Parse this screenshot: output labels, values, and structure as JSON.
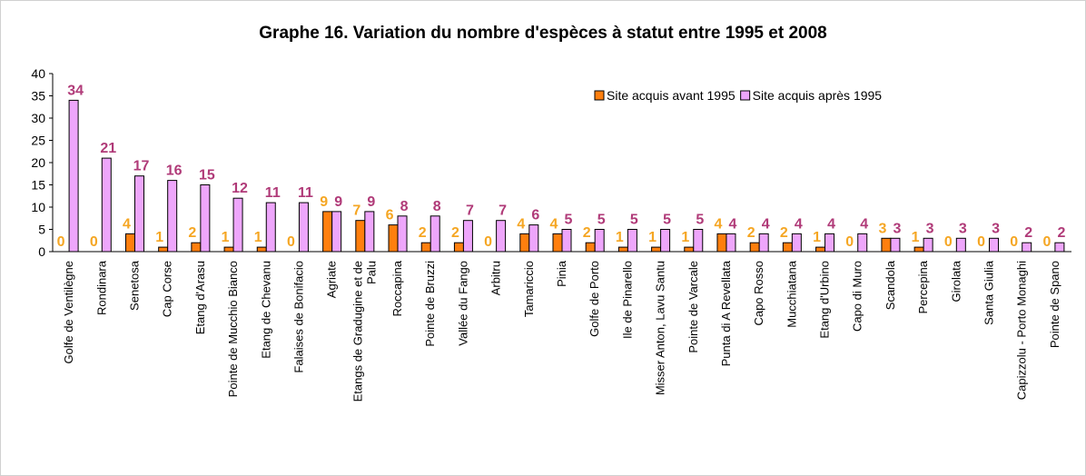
{
  "chart_data": {
    "type": "bar",
    "title": "Graphe 16. Variation du nombre d'espèces à statut entre 1995 et 2008",
    "categories": [
      "Golfe de Ventilègne",
      "Rondinara",
      "Senetosa",
      "Cap Corse",
      "Etang d'Arasu",
      "Pointe de Mucchio Bianco",
      "Etang de Chevanu",
      "Falaises de Bonifacio",
      "Agriate",
      "Etangs de Gradugine et de Palu",
      "Roccapina",
      "Pointe de Bruzzi",
      "Vallée du Fango",
      "Arbitru",
      "Tamariccio",
      "Pinia",
      "Golfe de Porto",
      "Ile de Pinarello",
      "Misser Anton, Lavu Santu",
      "Pointe de Varcale",
      "Punta di A Revellata",
      "Capo Rosso",
      "Mucchiatana",
      "Etang d'Urbino",
      "Capo di Muro",
      "Scandola",
      "Percepina",
      "Girolata",
      "Santa Giulia",
      "Capizzolu - Porto Monaghi",
      "Pointe de Spano"
    ],
    "series": [
      {
        "name": "Site acquis avant 1995",
        "color": "#ff7f0e",
        "label_color": "#f5a623",
        "values": [
          0,
          0,
          4,
          1,
          2,
          1,
          1,
          0,
          9,
          7,
          6,
          2,
          2,
          0,
          4,
          4,
          2,
          1,
          1,
          1,
          4,
          2,
          2,
          1,
          0,
          3,
          1,
          0,
          0,
          0,
          0
        ]
      },
      {
        "name": "Site acquis après 1995",
        "color": "#eea6fb",
        "label_color": "#b03a78",
        "values": [
          34,
          21,
          17,
          16,
          15,
          12,
          11,
          11,
          9,
          9,
          8,
          8,
          7,
          7,
          6,
          5,
          5,
          5,
          5,
          5,
          4,
          4,
          4,
          4,
          4,
          3,
          3,
          3,
          3,
          2,
          2
        ]
      }
    ],
    "ylim": [
      0,
      40
    ],
    "yticks": [
      0,
      5,
      10,
      15,
      20,
      25,
      30,
      35,
      40
    ],
    "legend": "top-right"
  }
}
